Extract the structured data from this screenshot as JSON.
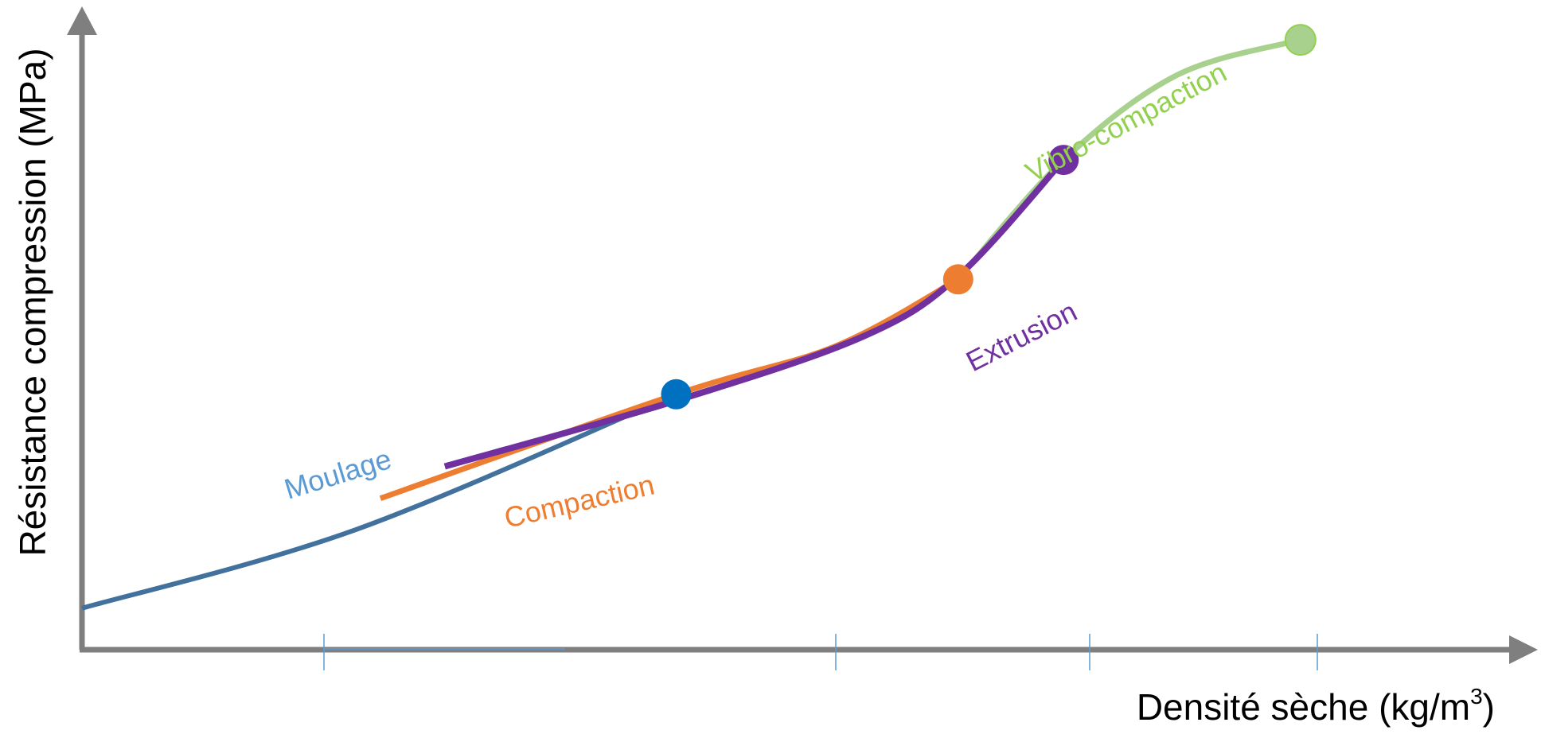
{
  "chart_data": {
    "type": "line",
    "title": "",
    "xlabel": "Densité sèche (kg/m",
    "xlabel_sup": "3",
    "xlabel_close": ")",
    "ylabel": "Résistance compression (MPa)",
    "x_tick_labels": [],
    "y_tick_labels": [],
    "axis_color": "#7f7f7f",
    "series": [
      {
        "name": "Moulage",
        "color": "#41719c",
        "label_color": "#5b9bd5",
        "marker_color": "#0070c0",
        "width": 6,
        "points": [
          [
            0.0,
            0.065
          ],
          [
            0.2,
            0.188
          ],
          [
            0.434,
            0.4
          ]
        ],
        "marker": [
          0.434,
          0.4
        ]
      },
      {
        "name": "Compaction",
        "color": "#ed7d31",
        "label_color": "#ed7d31",
        "marker_color": "#ed7d31",
        "width": 7,
        "points": [
          [
            0.218,
            0.237
          ],
          [
            0.434,
            0.4
          ],
          [
            0.55,
            0.475
          ],
          [
            0.64,
            0.58
          ]
        ],
        "marker": [
          0.64,
          0.58
        ]
      },
      {
        "name": "Extrusion",
        "color": "#7030a0",
        "label_color": "#7030a0",
        "marker_color": "#7030a0",
        "width": 8,
        "points": [
          [
            0.265,
            0.287
          ],
          [
            0.434,
            0.39
          ],
          [
            0.57,
            0.49
          ],
          [
            0.64,
            0.585
          ],
          [
            0.717,
            0.767
          ]
        ],
        "marker": [
          0.717,
          0.767
        ]
      },
      {
        "name": "Vibro-compaction",
        "color": "#a9d18e",
        "label_color": "#92d050",
        "marker_color": "#a9d18e",
        "width": 7,
        "points": [
          [
            0.64,
            0.58
          ],
          [
            0.717,
            0.767
          ],
          [
            0.8,
            0.9
          ],
          [
            0.89,
            0.955
          ]
        ],
        "marker": [
          0.89,
          0.955
        ]
      }
    ]
  }
}
